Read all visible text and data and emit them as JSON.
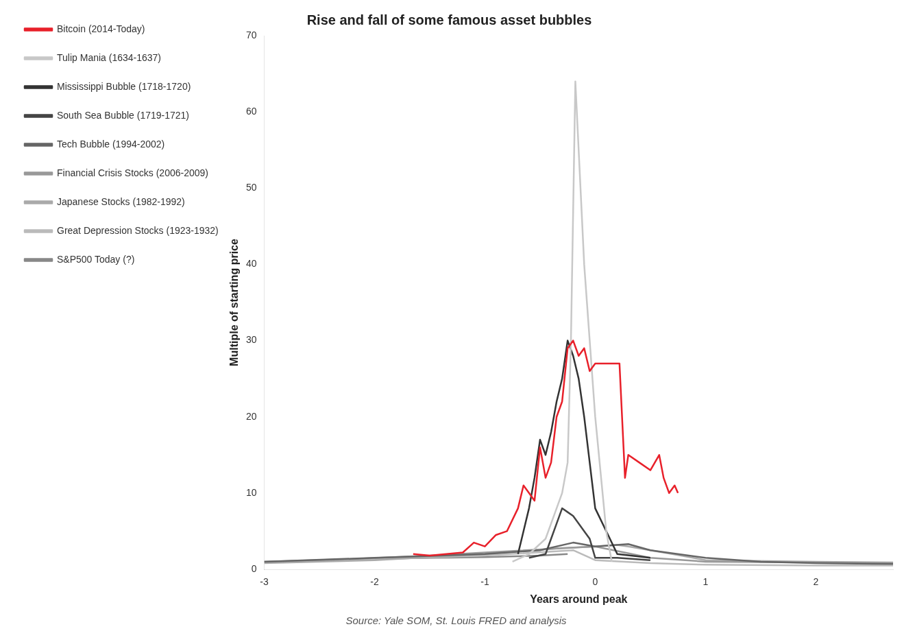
{
  "chart_data": {
    "type": "line",
    "title": "Rise and fall of some famous asset bubbles",
    "xlabel": "Years around peak",
    "ylabel": "Multiple of starting price",
    "annotations": [
      "Source: Yale SOM, St. Louis FRED and analysis"
    ],
    "xlim": [
      -3,
      2.7
    ],
    "xticks": [
      -3,
      -2,
      -1,
      0,
      1,
      2
    ],
    "ylim": [
      0,
      70
    ],
    "yticks": [
      0,
      10,
      20,
      30,
      40,
      50,
      60,
      70
    ],
    "legend": "left",
    "marker": "none",
    "series": [
      {
        "name": "Bitcoin (2014-Today)",
        "color": "#e8202a",
        "x": [
          -1.65,
          -1.5,
          -1.2,
          -1.1,
          -1.0,
          -0.9,
          -0.8,
          -0.7,
          -0.65,
          -0.6,
          -0.55,
          -0.5,
          -0.45,
          -0.4,
          -0.35,
          -0.3,
          -0.25,
          -0.2,
          -0.15,
          -0.1,
          -0.05,
          0,
          0.1,
          0.22,
          0.25,
          0.27,
          0.3,
          0.4,
          0.5,
          0.58,
          0.62,
          0.67,
          0.72,
          0.75
        ],
        "values": [
          2,
          1.8,
          2.2,
          3.5,
          3,
          4.5,
          5,
          8,
          11,
          10,
          9,
          16,
          12,
          14,
          20,
          22,
          29,
          30,
          28,
          29,
          26,
          27,
          27,
          27,
          18,
          12,
          15,
          14,
          13,
          15,
          12,
          10,
          11,
          10
        ]
      },
      {
        "name": "Tulip Mania (1634-1637)",
        "color": "#c8c8c8",
        "x": [
          -0.75,
          -0.6,
          -0.45,
          -0.35,
          -0.3,
          -0.25,
          -0.22,
          -0.18,
          -0.1,
          0,
          0.1,
          0.15
        ],
        "values": [
          1,
          2,
          4,
          8,
          10,
          14,
          30,
          64,
          40,
          20,
          5,
          1
        ]
      },
      {
        "name": "Mississippi Bubble (1718-1720)",
        "color": "#333333",
        "x": [
          -0.7,
          -0.65,
          -0.6,
          -0.55,
          -0.5,
          -0.45,
          -0.4,
          -0.35,
          -0.3,
          -0.25,
          -0.2,
          -0.15,
          -0.1,
          0,
          0.2,
          0.5
        ],
        "values": [
          2,
          5,
          8,
          12,
          17,
          15,
          18,
          22,
          25,
          30,
          28,
          25,
          20,
          8,
          2,
          1.5
        ]
      },
      {
        "name": "South Sea Bubble (1719-1721)",
        "color": "#444444",
        "x": [
          -0.6,
          -0.45,
          -0.4,
          -0.35,
          -0.3,
          -0.25,
          -0.2,
          -0.1,
          -0.05,
          0,
          0.2,
          0.5
        ],
        "values": [
          1.5,
          2,
          4,
          6,
          8,
          7.5,
          7,
          5,
          4,
          1.5,
          1.5,
          1.2
        ]
      },
      {
        "name": "Tech Bubble (1994-2002)",
        "color": "#666666",
        "x": [
          -3,
          -2,
          -1,
          -0.5,
          -0.2,
          0,
          0.3,
          0.5,
          1,
          1.5,
          2,
          2.7
        ],
        "values": [
          1,
          1.5,
          2,
          2.5,
          3.5,
          3,
          3.3,
          2.5,
          1.5,
          1,
          0.8,
          0.7
        ]
      },
      {
        "name": "Financial Crisis Stocks (2006-2009)",
        "color": "#999999",
        "x": [
          -3,
          -2.3,
          -1.5,
          -1,
          0,
          0.5,
          1,
          2,
          2.7
        ],
        "values": [
          1,
          1.3,
          1.8,
          2.2,
          3,
          1.5,
          1,
          0.9,
          0.8
        ]
      },
      {
        "name": "Japanese Stocks (1982-1992)",
        "color": "#aaaaaa",
        "x": [
          -3,
          -2,
          -1,
          -0.3,
          0,
          0.2,
          0.3,
          0.7,
          1,
          2,
          2.7
        ],
        "values": [
          0.8,
          1.2,
          2,
          2.8,
          3,
          3.2,
          3,
          2,
          1.2,
          1,
          0.9
        ]
      },
      {
        "name": "Great Depression Stocks (1923-1932)",
        "color": "#bbbbbb",
        "x": [
          -3,
          -2,
          -1,
          -0.2,
          0,
          0.5,
          1,
          2,
          2.7
        ],
        "values": [
          1,
          1.3,
          1.8,
          2.5,
          1.2,
          0.8,
          0.6,
          0.5,
          0.5
        ]
      },
      {
        "name": "S&P500 Today (?)",
        "color": "#888888",
        "x": [
          -2,
          -1,
          -0.5,
          -0.25
        ],
        "values": [
          1.4,
          1.6,
          1.8,
          2
        ]
      }
    ]
  }
}
